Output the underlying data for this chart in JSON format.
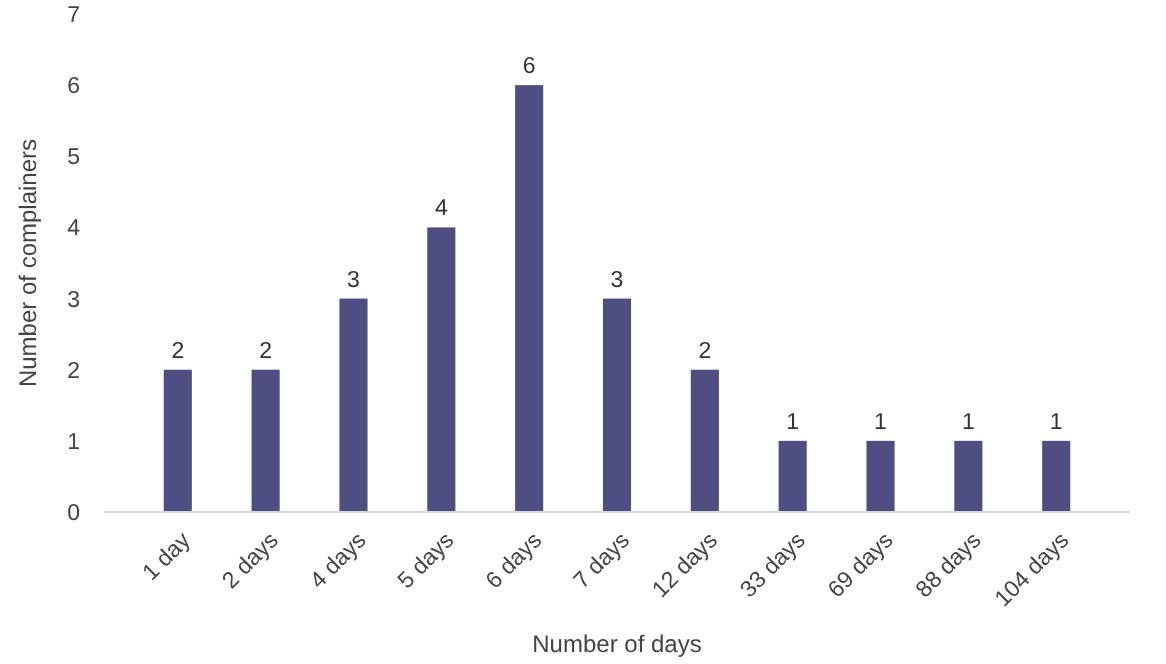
{
  "chart_data": {
    "type": "bar",
    "xlabel": "Number of days",
    "ylabel": "Number of complainers",
    "categories": [
      "1 day",
      "2 days",
      "4 days",
      "5 days",
      "6 days",
      "7 days",
      "12 days",
      "33 days",
      "69 days",
      "88 days",
      "104 days"
    ],
    "values": [
      2,
      2,
      3,
      4,
      6,
      3,
      2,
      1,
      1,
      1,
      1
    ],
    "color": "#4f4e83",
    "ylim": [
      0,
      7
    ],
    "yticks": [
      0,
      1,
      2,
      3,
      4,
      5,
      6,
      7
    ],
    "grid": false,
    "data_labels": true
  }
}
